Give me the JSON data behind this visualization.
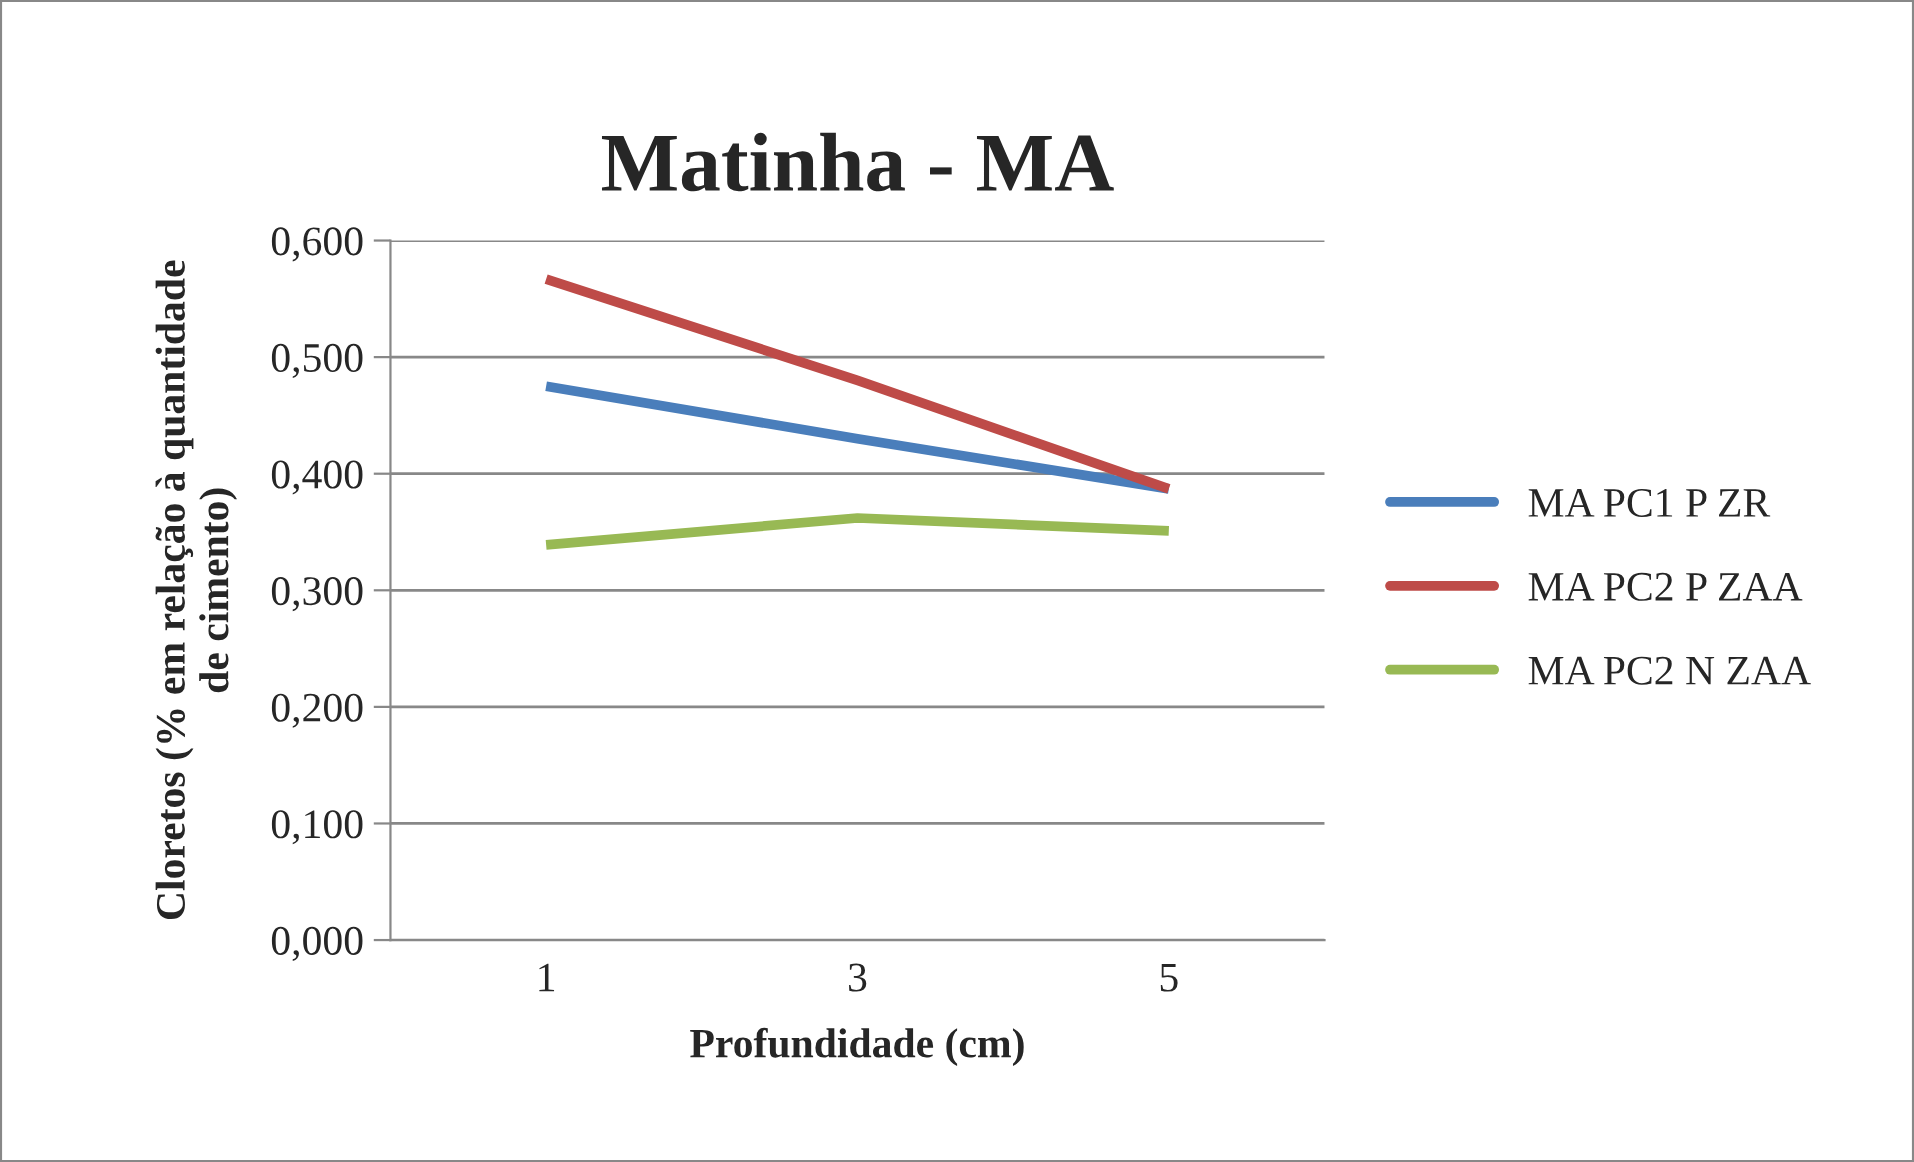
{
  "chart_data": {
    "type": "line",
    "title": "Matinha - MA",
    "xlabel": "Profundidade (cm)",
    "ylabel": "Cloretos (% em relação à quantidade\nde cimento)",
    "categories": [
      "1",
      "3",
      "5"
    ],
    "series": [
      {
        "name": "MA PC1 P ZR",
        "color": "#4a7ebb",
        "values": [
          0.475,
          0.43,
          0.387
        ]
      },
      {
        "name": "MA PC2 P ZAA",
        "color": "#be4b48",
        "values": [
          0.567,
          0.48,
          0.387
        ]
      },
      {
        "name": "MA PC2 N ZAA",
        "color": "#98b954",
        "values": [
          0.339,
          0.362,
          0.351
        ]
      }
    ],
    "ylim": [
      0,
      0.6
    ],
    "yticks": [
      {
        "value": 0,
        "label": "0,000"
      },
      {
        "value": 0.1,
        "label": "0,100"
      },
      {
        "value": 0.2,
        "label": "0,200"
      },
      {
        "value": 0.3,
        "label": "0,300"
      },
      {
        "value": 0.4,
        "label": "0,400"
      },
      {
        "value": 0.5,
        "label": "0,500"
      },
      {
        "value": 0.6,
        "label": "0,600"
      }
    ],
    "grid": "y",
    "legend": "right",
    "marker": "none",
    "line_style": "solid"
  }
}
